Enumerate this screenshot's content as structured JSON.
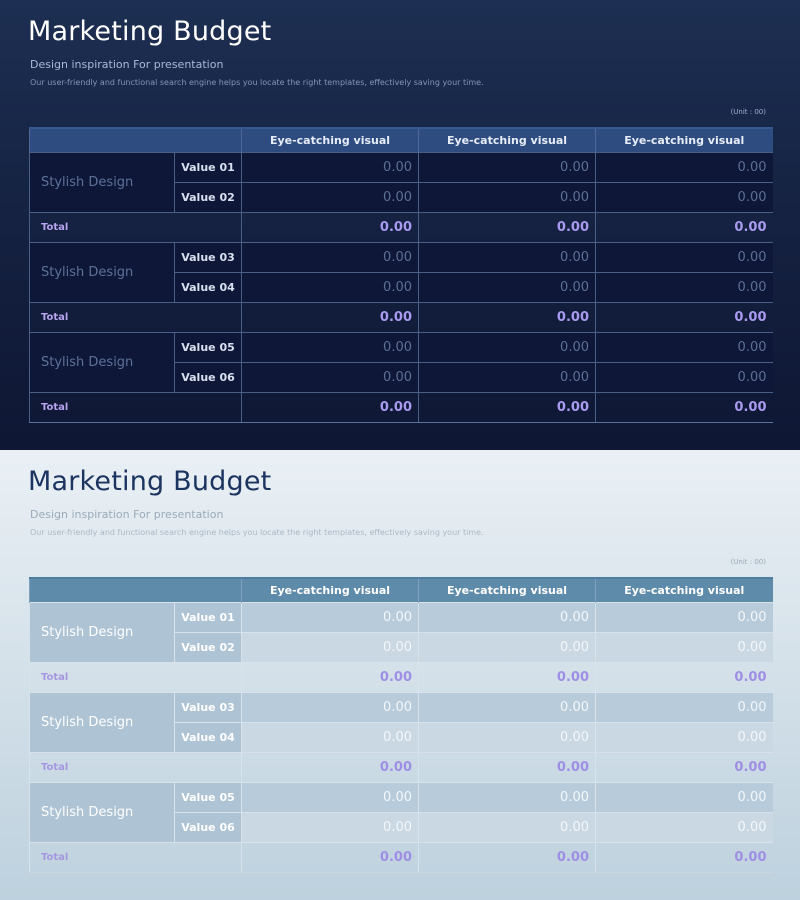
{
  "title": "Marketing Budget",
  "subtitle": "Design inspiration For presentation",
  "description": "Our user-friendly and functional search engine helps you locate the right templates, effectively saving your time.",
  "unit": "(Unit : 00)",
  "columns": [
    "Eye-catching visual",
    "Eye-catching visual",
    "Eye-catching visual"
  ],
  "groups": [
    {
      "category": "Stylish Design",
      "rows": [
        {
          "label": "Value 01",
          "values": [
            "0.00",
            "0.00",
            "0.00"
          ]
        },
        {
          "label": "Value 02",
          "values": [
            "0.00",
            "0.00",
            "0.00"
          ]
        }
      ],
      "total": {
        "label": "Total",
        "values": [
          "0.00",
          "0.00",
          "0.00"
        ]
      }
    },
    {
      "category": "Stylish Design",
      "rows": [
        {
          "label": "Value 03",
          "values": [
            "0.00",
            "0.00",
            "0.00"
          ]
        },
        {
          "label": "Value 04",
          "values": [
            "0.00",
            "0.00",
            "0.00"
          ]
        }
      ],
      "total": {
        "label": "Total",
        "values": [
          "0.00",
          "0.00",
          "0.00"
        ]
      }
    },
    {
      "category": "Stylish Design",
      "rows": [
        {
          "label": "Value 05",
          "values": [
            "0.00",
            "0.00",
            "0.00"
          ]
        },
        {
          "label": "Value 06",
          "values": [
            "0.00",
            "0.00",
            "0.00"
          ]
        }
      ],
      "total": {
        "label": "Total",
        "values": [
          "0.00",
          "0.00",
          "0.00"
        ]
      }
    }
  ],
  "colors": {
    "dark_background": "#14203f",
    "dark_header": "#2e4c7f",
    "light_background": "#d6e2ea",
    "light_header": "#5f8bab",
    "total_accent": "#a99af0"
  }
}
